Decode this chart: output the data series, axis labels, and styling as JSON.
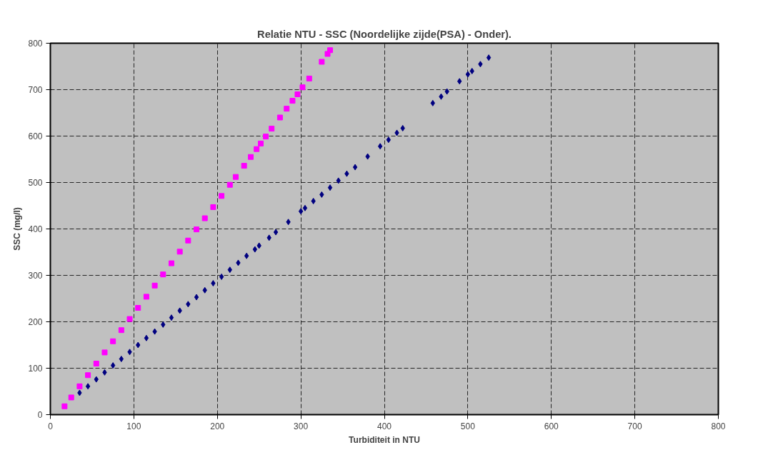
{
  "chart_data": {
    "type": "scatter",
    "title": "Relatie NTU - SSC (Noordelijke zijde(PSA) - Onder).",
    "xlabel": "Turbiditeit in NTU",
    "ylabel": "SSC (mg/l)",
    "xlim": [
      0,
      800
    ],
    "xticks": [
      0,
      100,
      200,
      300,
      400,
      500,
      600,
      700,
      800
    ],
    "ylim": [
      0,
      800
    ],
    "yticks": [
      0,
      100,
      200,
      300,
      400,
      500,
      600,
      700,
      800
    ],
    "grid": true,
    "line_style": "dashed",
    "series": [
      {
        "color": "#000080",
        "marker": "diamond",
        "x": [
          35,
          45,
          55,
          65,
          75,
          85,
          95,
          105,
          115,
          125,
          135,
          145,
          155,
          165,
          175,
          185,
          195,
          205,
          215,
          225,
          235,
          245,
          250,
          262,
          270,
          285,
          300,
          305,
          315,
          325,
          335,
          345,
          355,
          365,
          380,
          395,
          405,
          415,
          422,
          458,
          468,
          475,
          490,
          500,
          505,
          515,
          525
        ],
        "values": [
          47,
          61,
          76,
          91,
          106,
          120,
          135,
          150,
          165,
          179,
          194,
          209,
          224,
          238,
          253,
          268,
          283,
          297,
          312,
          327,
          342,
          356,
          364,
          381,
          393,
          415,
          438,
          445,
          460,
          474,
          489,
          504,
          519,
          533,
          556,
          578,
          592,
          607,
          617,
          671,
          685,
          696,
          718,
          733,
          740,
          755,
          769
        ]
      },
      {
        "color": "#ff00ff",
        "marker": "square",
        "x": [
          17,
          25,
          35,
          45,
          55,
          65,
          75,
          85,
          95,
          105,
          115,
          125,
          135,
          145,
          155,
          165,
          175,
          185,
          195,
          205,
          215,
          222,
          232,
          240,
          247,
          252,
          258,
          265,
          275,
          283,
          290,
          296,
          302,
          310,
          325,
          332,
          335
        ],
        "values": [
          18,
          37,
          61,
          85,
          110,
          134,
          158,
          182,
          206,
          230,
          254,
          278,
          302,
          326,
          351,
          375,
          399,
          423,
          447,
          471,
          495,
          512,
          536,
          555,
          572,
          584,
          599,
          616,
          640,
          659,
          676,
          690,
          705,
          724,
          760,
          777,
          785
        ]
      }
    ]
  }
}
